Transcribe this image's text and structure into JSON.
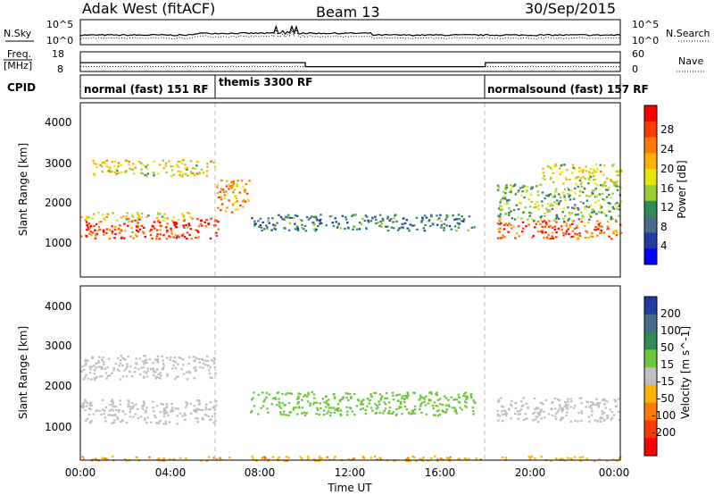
{
  "header": {
    "station": "Adak West (fitACF)",
    "beam": "Beam 13",
    "date": "30/Sep/2015"
  },
  "noise_panel": {
    "left_label": "N.Sky",
    "right_label": "N.Search",
    "left_ticks": [
      "10^5",
      "10^0"
    ],
    "right_ticks": [
      "10^5",
      "10^0"
    ]
  },
  "freq_panel": {
    "left_label_line1": "Freq.",
    "left_label_line2": "[MHz]",
    "left_ticks": [
      "18",
      "8"
    ],
    "right_label": "Nave",
    "right_ticks": [
      "60",
      "0"
    ],
    "freq_segments": [
      {
        "start": 0,
        "end": 10,
        "mhz": 13.5
      },
      {
        "start": 10,
        "end": 18,
        "mhz": 11.0
      },
      {
        "start": 18,
        "end": 24,
        "mhz": 13.5
      }
    ],
    "nave_level": 18
  },
  "cpid_panel": {
    "label": "CPID",
    "modes": [
      {
        "name": "normal (fast) 151 RF",
        "start_hour": 0,
        "end_hour": 6
      },
      {
        "name": "themis 3300 RF",
        "start_hour": 6,
        "end_hour": 18
      },
      {
        "name": "normalsound (fast) 157 RF",
        "start_hour": 18,
        "end_hour": 24
      }
    ]
  },
  "power_panel": {
    "ylabel": "Slant Range [km]",
    "yticks": [
      "4000",
      "3000",
      "2000",
      "1000"
    ],
    "colorbar_label": "Power [dB]",
    "colorbar_ticks": [
      "28",
      "24",
      "20",
      "16",
      "12",
      "8",
      "4"
    ],
    "colorbar_colors": [
      "#ff0000",
      "#ff3c00",
      "#ff7a00",
      "#ffb300",
      "#e6e600",
      "#9acd32",
      "#2e8b57",
      "#466e8c",
      "#1f3da0",
      "#0000ff"
    ]
  },
  "velocity_panel": {
    "ylabel": "Slant Range [km]",
    "yticks": [
      "4000",
      "3000",
      "2000",
      "1000"
    ],
    "colorbar_label": "Velocity [m s^-1]",
    "colorbar_ticks": [
      "200",
      "100",
      "50",
      "15",
      "-15",
      "-50",
      "-100",
      "-200"
    ],
    "colorbar_colors": [
      "#1f3da0",
      "#466e8c",
      "#2e8b57",
      "#6cc63c",
      "#bfbfbf",
      "#ffb300",
      "#ff7a00",
      "#ff3c00",
      "#ff0000"
    ]
  },
  "xaxis": {
    "label": "Time UT",
    "ticks": [
      "00:00",
      "04:00",
      "08:00",
      "12:00",
      "16:00",
      "20:00",
      "00:00"
    ]
  },
  "chart_data": {
    "type": "heatmap",
    "title": "Adak West (fitACF) Beam 13 30/Sep/2015",
    "xlabel": "Time UT",
    "ylabel": "Slant Range [km]",
    "xlim": [
      0,
      24
    ],
    "ylim": [
      180,
      4500
    ],
    "mode_change_hours": [
      6,
      18
    ],
    "power_features": [
      {
        "t0": 0,
        "t1": 6.2,
        "r0": 1150,
        "r1": 1650,
        "db": 27
      },
      {
        "t0": 0,
        "t1": 5,
        "r0": 1600,
        "r1": 1800,
        "db": 18
      },
      {
        "t0": 0.5,
        "t1": 6,
        "r0": 2700,
        "r1": 3100,
        "db": 18
      },
      {
        "t0": 6,
        "t1": 7.5,
        "r0": 1800,
        "r1": 2600,
        "db": 22
      },
      {
        "t0": 7.5,
        "t1": 17.5,
        "r0": 1350,
        "r1": 1750,
        "db": 10
      },
      {
        "t0": 18.5,
        "t1": 24,
        "r0": 1150,
        "r1": 1600,
        "db": 26
      },
      {
        "t0": 18.5,
        "t1": 24,
        "r0": 1600,
        "r1": 2500,
        "db": 14
      },
      {
        "t0": 20.5,
        "t1": 24,
        "r0": 2500,
        "r1": 3000,
        "db": 18
      }
    ],
    "velocity_features": [
      {
        "t0": 0,
        "t1": 6,
        "r0": 1100,
        "r1": 1700,
        "v": 0
      },
      {
        "t0": 0,
        "t1": 6,
        "r0": 2200,
        "r1": 2800,
        "v": 0
      },
      {
        "t0": 7.5,
        "t1": 17.5,
        "r0": 1300,
        "r1": 1900,
        "v": 30
      },
      {
        "t0": 18.5,
        "t1": 24,
        "r0": 1150,
        "r1": 1750,
        "v": 0
      },
      {
        "t0": 0,
        "t1": 24,
        "r0": 180,
        "r1": 300,
        "v": -40
      }
    ]
  }
}
